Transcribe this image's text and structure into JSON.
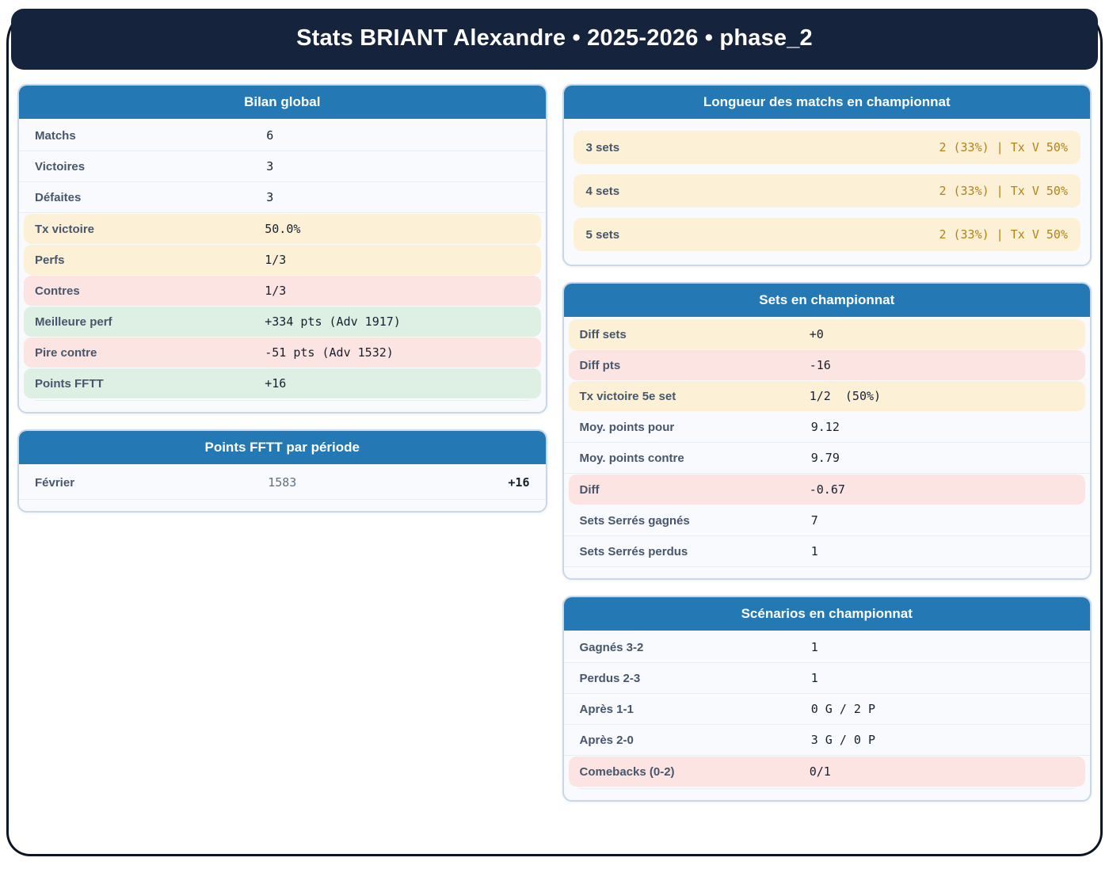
{
  "title": "Stats BRIANT Alexandre • 2025-2026 • phase_2",
  "colors": {
    "navy": "#16233d",
    "frame": "#0c1526",
    "blue": "#2478b4",
    "cream": "#fcf0d6",
    "rose": "#fce4e2",
    "mint": "#def0e4",
    "amber": "#b2831c",
    "label": "#47566b",
    "value": "#16202e",
    "gray": "#5f7183"
  },
  "cards": {
    "bilan": {
      "title": "Bilan global",
      "rows": [
        {
          "label": "Matchs",
          "value": "6",
          "tone": "plain"
        },
        {
          "label": "Victoires",
          "value": "3",
          "tone": "plain"
        },
        {
          "label": "Défaites",
          "value": "3",
          "tone": "plain"
        },
        {
          "label": "Tx victoire",
          "value": "50.0%",
          "tone": "warn"
        },
        {
          "label": "Perfs",
          "value": "1/3",
          "tone": "warn"
        },
        {
          "label": "Contres",
          "value": "1/3",
          "tone": "bad"
        },
        {
          "label": "Meilleure perf",
          "value": "+334 pts (Adv 1917)",
          "tone": "good"
        },
        {
          "label": "Pire contre",
          "value": "-51 pts (Adv 1532)",
          "tone": "bad"
        },
        {
          "label": "Points FFTT",
          "value": "+16",
          "tone": "good"
        }
      ]
    },
    "periodes": {
      "title": "Points FFTT par période",
      "rows": [
        {
          "label": "Février",
          "mid": "1583",
          "value": "+16"
        }
      ]
    },
    "longueur": {
      "title": "Longueur des matchs en championnat",
      "rows": [
        {
          "label": "3 sets",
          "value": "2 (33%) | Tx V 50%",
          "tone": "warn"
        },
        {
          "label": "4 sets",
          "value": "2 (33%) | Tx V 50%",
          "tone": "warn"
        },
        {
          "label": "5 sets",
          "value": "2 (33%) | Tx V 50%",
          "tone": "warn"
        }
      ]
    },
    "sets": {
      "title": "Sets en championnat",
      "rows": [
        {
          "label": "Diff sets",
          "value": "+0",
          "tone": "warn"
        },
        {
          "label": "Diff pts",
          "value": "-16",
          "tone": "bad"
        },
        {
          "label": "Tx victoire 5e set",
          "value": "1/2  (50%)",
          "tone": "warn"
        },
        {
          "label": "Moy. points pour",
          "value": "9.12",
          "tone": "plain"
        },
        {
          "label": "Moy. points contre",
          "value": "9.79",
          "tone": "plain"
        },
        {
          "label": "Diff",
          "value": "-0.67",
          "tone": "bad"
        },
        {
          "label": "Sets Serrés gagnés",
          "value": "7",
          "tone": "plain"
        },
        {
          "label": "Sets Serrés perdus",
          "value": "1",
          "tone": "plain"
        }
      ]
    },
    "scenarios": {
      "title": "Scénarios en championnat",
      "rows": [
        {
          "label": "Gagnés 3-2",
          "value": "1",
          "tone": "plain"
        },
        {
          "label": "Perdus 2-3",
          "value": "1",
          "tone": "plain"
        },
        {
          "label": "Après 1-1",
          "value": "0 G / 2 P",
          "tone": "plain"
        },
        {
          "label": "Après 2-0",
          "value": "3 G / 0 P",
          "tone": "plain"
        },
        {
          "label": "Comebacks (0-2)",
          "value": "0/1",
          "tone": "bad"
        }
      ]
    }
  }
}
